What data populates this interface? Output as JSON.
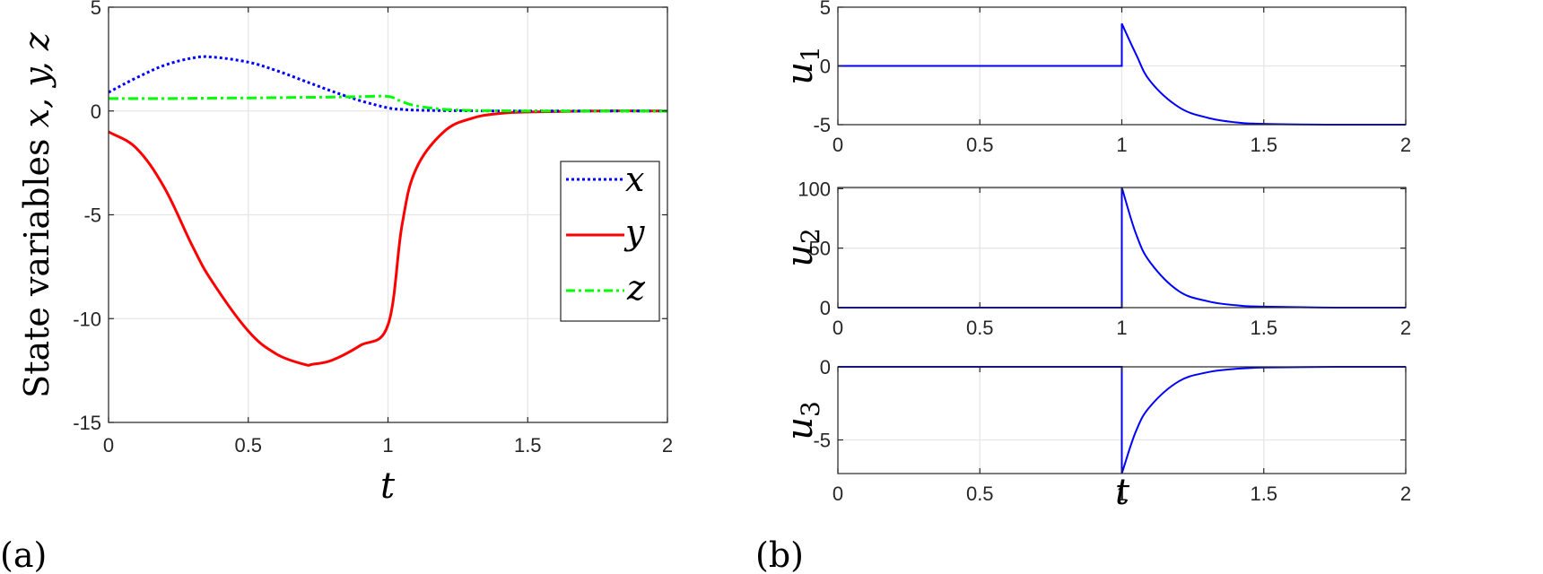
{
  "figure": {
    "panel_a_label": "(a)",
    "panel_b_label": "(b)"
  },
  "chart_data": [
    {
      "type": "line",
      "panel": "(a)",
      "title": "",
      "xlabel": "t",
      "ylabel": "State variables x, y, z",
      "xlim": [
        0,
        2
      ],
      "ylim": [
        -15,
        5
      ],
      "xticks": [
        "0",
        "0.5",
        "1",
        "1.5",
        "2"
      ],
      "yticks": [
        "5",
        "0",
        "-5",
        "-10",
        "-15"
      ],
      "grid": true,
      "legend": {
        "position": "right-center",
        "entries": [
          "x",
          "y",
          "z"
        ]
      },
      "x": [
        0,
        0.1,
        0.2,
        0.3,
        0.37,
        0.5,
        0.6,
        0.7,
        0.73,
        0.8,
        0.9,
        1.0,
        1.05,
        1.1,
        1.2,
        1.3,
        1.4,
        1.5,
        1.75,
        2.0
      ],
      "series": [
        {
          "name": "x",
          "color": "#0000ff",
          "style": "dotted",
          "values": [
            0.9,
            1.6,
            2.2,
            2.55,
            2.6,
            2.35,
            1.95,
            1.45,
            1.3,
            0.95,
            0.5,
            0.15,
            0.08,
            0.04,
            0.02,
            0.01,
            0,
            0,
            0,
            0
          ]
        },
        {
          "name": "y",
          "color": "#ff0000",
          "style": "solid",
          "values": [
            -1.0,
            -1.8,
            -3.7,
            -6.5,
            -8.2,
            -10.6,
            -11.7,
            -12.2,
            -12.2,
            -12.0,
            -11.3,
            -10.3,
            -5.5,
            -2.8,
            -1.0,
            -0.35,
            -0.12,
            -0.05,
            0,
            0
          ]
        },
        {
          "name": "z",
          "color": "#00ff00",
          "style": "dashdot",
          "values": [
            0.6,
            0.6,
            0.6,
            0.61,
            0.62,
            0.63,
            0.64,
            0.66,
            0.66,
            0.67,
            0.69,
            0.7,
            0.45,
            0.25,
            0.08,
            0.03,
            0.01,
            0,
            0,
            0
          ]
        }
      ]
    },
    {
      "type": "line",
      "panel": "(b) top",
      "xlabel": "",
      "ylabel": "u1",
      "xlim": [
        0,
        2
      ],
      "ylim": [
        -5,
        5
      ],
      "xticks": [
        "0",
        "0.5",
        "1",
        "1.5",
        "2"
      ],
      "yticks": [
        "5",
        "0",
        "-5"
      ],
      "grid": true,
      "series": [
        {
          "name": "u1",
          "color": "#0000ff",
          "x": [
            0,
            1.0,
            1.0,
            1.05,
            1.1,
            1.2,
            1.3,
            1.4,
            1.5,
            1.75,
            2.0
          ],
          "values": [
            0,
            0,
            3.6,
            1.0,
            -1.3,
            -3.5,
            -4.4,
            -4.8,
            -4.93,
            -5.0,
            -5.0
          ]
        }
      ]
    },
    {
      "type": "line",
      "panel": "(b) middle",
      "xlabel": "",
      "ylabel": "u2",
      "xlim": [
        0,
        2
      ],
      "ylim": [
        0,
        101
      ],
      "xticks": [
        "0",
        "0.5",
        "1",
        "1.5",
        "2"
      ],
      "yticks": [
        "100",
        "50",
        "0"
      ],
      "grid": true,
      "series": [
        {
          "name": "u2",
          "color": "#0000ff",
          "x": [
            0,
            1.0,
            1.0,
            1.05,
            1.1,
            1.2,
            1.3,
            1.4,
            1.5,
            1.75,
            2.0
          ],
          "values": [
            0,
            0,
            101,
            62,
            38,
            14,
            5.5,
            2,
            0.8,
            0,
            0
          ]
        }
      ]
    },
    {
      "type": "line",
      "panel": "(b) bottom",
      "xlabel": "t",
      "ylabel": "u3",
      "xlim": [
        0,
        2
      ],
      "ylim": [
        -7.3,
        0
      ],
      "xticks": [
        "0",
        "0.5",
        "1",
        "1.5",
        "2"
      ],
      "yticks": [
        "0",
        "-5"
      ],
      "grid": true,
      "series": [
        {
          "name": "u3",
          "color": "#0000ff",
          "x": [
            0,
            1.0,
            1.0,
            1.05,
            1.1,
            1.2,
            1.3,
            1.4,
            1.5,
            1.75,
            2.0
          ],
          "values": [
            0,
            0,
            -7.3,
            -4.4,
            -2.7,
            -1.0,
            -0.38,
            -0.14,
            -0.05,
            0,
            0
          ]
        }
      ]
    }
  ]
}
